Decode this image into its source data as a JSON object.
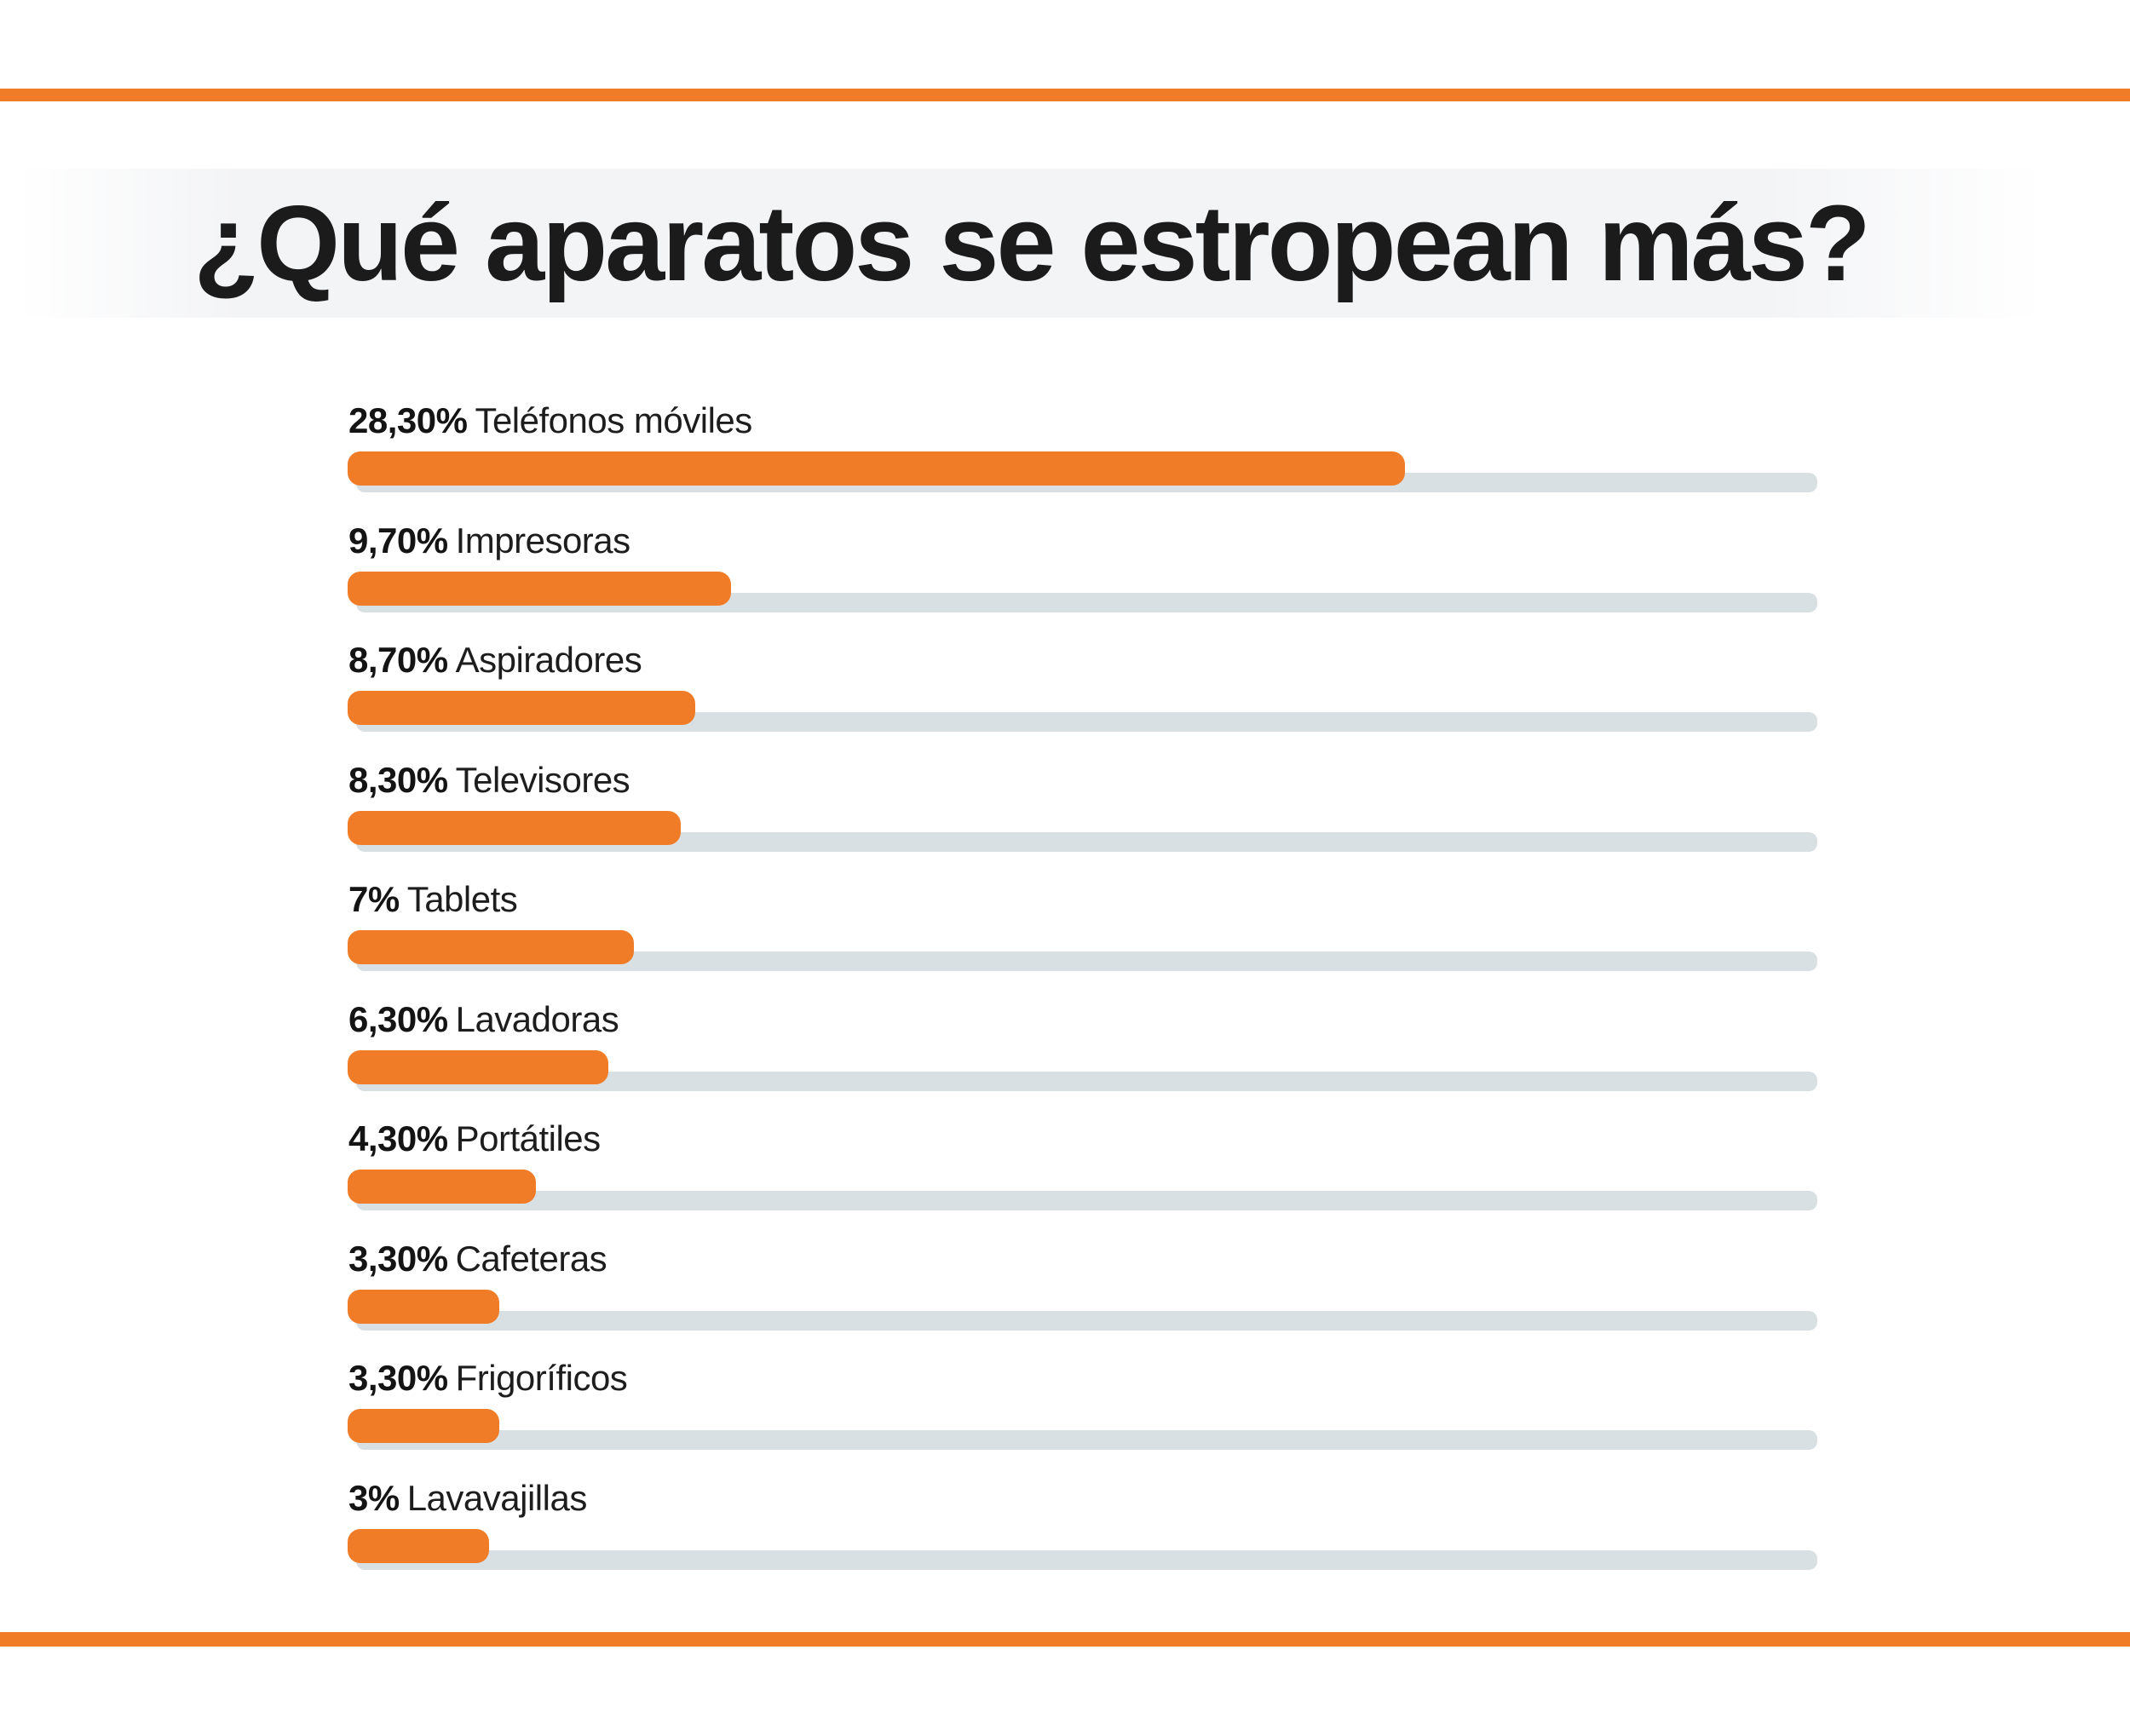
{
  "page": {
    "background": "#ffffff",
    "accent_color": "#F07C28",
    "track_color": "#D9E0E4",
    "title_band_color": "#F3F4F6",
    "text_color": "#1C1C1C"
  },
  "header": {
    "title": "¿Qué aparatos se estropean más?"
  },
  "chart_data": {
    "type": "bar",
    "orientation": "horizontal",
    "title": "¿Qué aparatos se estropean más?",
    "categories": [
      "Teléfonos móviles",
      "Impresoras",
      "Aspiradores",
      "Televisores",
      "Tablets",
      "Lavadoras",
      "Portátiles",
      "Cafeteras",
      "Frigoríficos",
      "Lavavajillas"
    ],
    "values": [
      28.3,
      9.7,
      8.7,
      8.3,
      7,
      6.3,
      4.3,
      3.3,
      3.3,
      3
    ],
    "value_labels": [
      "28,30%",
      "9,70%",
      "8,70%",
      "8,30%",
      "7%",
      "6,30%",
      "4,30%",
      "3,30%",
      "3,30%",
      "3%"
    ],
    "unit": "%",
    "xlim": [
      0,
      40
    ],
    "grid": false,
    "legend": false,
    "bar_color": "#F07C28",
    "track_color": "#D9E0E4"
  }
}
